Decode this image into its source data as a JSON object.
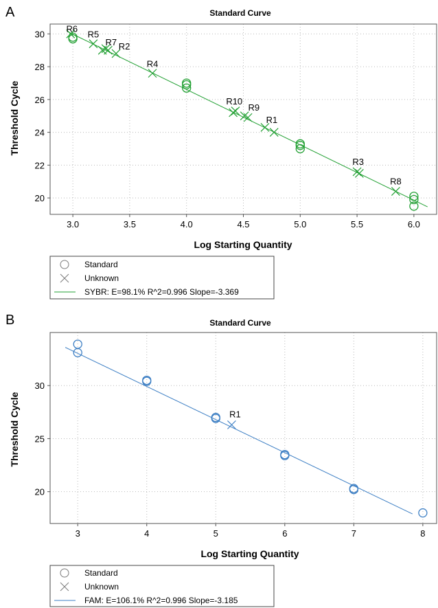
{
  "panels": [
    {
      "letter": "A"
    },
    {
      "letter": "B"
    }
  ],
  "colors": {
    "sybr": "#22a033",
    "fam": "#3d7fc4"
  },
  "chart_data": [
    {
      "type": "scatter",
      "title": "Standard Curve",
      "xlabel": "Log Starting Quantity",
      "ylabel": "Threshold Cycle",
      "xlim": [
        2.8,
        6.2
      ],
      "ylim": [
        19.0,
        30.6
      ],
      "xticks": [
        3.0,
        3.5,
        4.0,
        4.5,
        5.0,
        5.5,
        6.0
      ],
      "xtick_labels": [
        "3.0",
        "3.5",
        "4.0",
        "4.5",
        "5.0",
        "5.5",
        "6.0"
      ],
      "yticks": [
        20,
        22,
        24,
        26,
        28,
        30
      ],
      "ytick_labels": [
        "20",
        "22",
        "24",
        "26",
        "28",
        "30"
      ],
      "grid": true,
      "standards": {
        "x": [
          3.0,
          3.0,
          4.0,
          4.0,
          4.0,
          5.0,
          5.0,
          5.0,
          6.0,
          6.0,
          6.0
        ],
        "y": [
          29.7,
          29.8,
          26.7,
          26.9,
          27.0,
          23.0,
          23.2,
          23.3,
          19.5,
          19.9,
          20.1
        ]
      },
      "unknowns": {
        "x": [
          2.98,
          3.18,
          3.26,
          3.29,
          3.31,
          3.38,
          3.7,
          4.41,
          4.43,
          4.51,
          4.54,
          4.69,
          4.77,
          5.5,
          5.52,
          5.84
        ],
        "y": [
          30.0,
          29.4,
          29.0,
          29.1,
          29.0,
          28.8,
          27.6,
          25.2,
          25.3,
          25.0,
          24.9,
          24.3,
          24.0,
          21.6,
          21.5,
          20.4
        ]
      },
      "point_labels": [
        {
          "text": "R6",
          "x": 2.98,
          "y": 30.0
        },
        {
          "text": "R5",
          "x": 3.18,
          "y": 29.4
        },
        {
          "text": "R7",
          "x": 3.3,
          "y": 29.0
        },
        {
          "text": "R2",
          "x": 3.38,
          "y": 28.8
        },
        {
          "text": "R4",
          "x": 3.7,
          "y": 27.6
        },
        {
          "text": "R10",
          "x": 4.42,
          "y": 25.25
        },
        {
          "text": "R9",
          "x": 4.52,
          "y": 24.95
        },
        {
          "text": "R1",
          "x": 4.75,
          "y": 24.1
        },
        {
          "text": "R3",
          "x": 5.51,
          "y": 21.55
        },
        {
          "text": "R8",
          "x": 5.84,
          "y": 20.4
        }
      ],
      "fit_line": {
        "x": [
          2.95,
          6.12
        ],
        "y": [
          30.15,
          19.46
        ]
      },
      "legend": [
        {
          "marker": "circle",
          "label": "Standard"
        },
        {
          "marker": "cross",
          "label": "Unknown"
        },
        {
          "marker": "line",
          "label": "SYBR: E=98.1% R^2=0.996 Slope=-3.369"
        }
      ]
    },
    {
      "type": "scatter",
      "title": "Standard Curve",
      "xlabel": "Log Starting Quantity",
      "ylabel": "Threshold Cycle",
      "xlim": [
        2.6,
        8.2
      ],
      "ylim": [
        17.0,
        35.0
      ],
      "xticks": [
        3,
        4,
        5,
        6,
        7,
        8
      ],
      "xtick_labels": [
        "3",
        "4",
        "5",
        "6",
        "7",
        "8"
      ],
      "yticks": [
        20,
        25,
        30
      ],
      "ytick_labels": [
        "20",
        "25",
        "30"
      ],
      "grid": true,
      "standards": {
        "x": [
          3,
          3,
          4,
          4,
          5,
          5,
          6,
          6,
          7,
          7,
          8
        ],
        "y": [
          33.9,
          33.1,
          30.5,
          30.4,
          26.9,
          27.0,
          23.5,
          23.4,
          20.3,
          20.2,
          18.0
        ]
      },
      "unknowns": {
        "x": [
          5.23
        ],
        "y": [
          26.3
        ]
      },
      "point_labels": [
        {
          "text": "R1",
          "x": 5.23,
          "y": 26.3
        }
      ],
      "fit_line": {
        "x": [
          2.82,
          7.85
        ],
        "y": [
          33.6,
          17.9
        ]
      },
      "legend": [
        {
          "marker": "circle",
          "label": "Standard"
        },
        {
          "marker": "cross",
          "label": "Unknown"
        },
        {
          "marker": "line",
          "label": "FAM: E=106.1% R^2=0.996 Slope=-3.185"
        }
      ]
    }
  ]
}
